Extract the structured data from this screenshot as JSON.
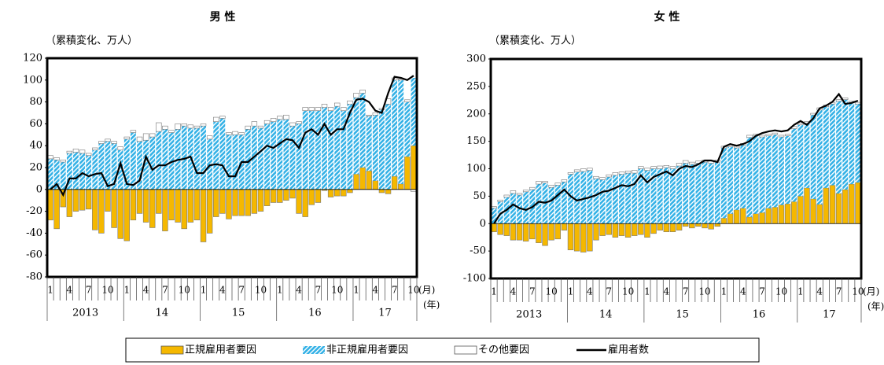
{
  "chart_data": [
    {
      "type": "bar",
      "title": "男 性",
      "y_label": "（累積変化、万人）",
      "categories": [
        "1",
        null,
        null,
        "4",
        null,
        null,
        "7",
        null,
        null,
        "10",
        null,
        null,
        "1",
        null,
        null,
        "4",
        null,
        null,
        "7",
        null,
        null,
        "10",
        null,
        null,
        "1",
        null,
        null,
        "4",
        null,
        null,
        "7",
        null,
        null,
        "10",
        null,
        null,
        "1",
        null,
        null,
        "4",
        null,
        null,
        "7",
        null,
        null,
        "10",
        null,
        null,
        "1",
        null,
        null,
        "4",
        null,
        null,
        "7",
        null,
        null,
        "10"
      ],
      "year_labels": [
        "2013",
        "14",
        "15",
        "16",
        "17"
      ],
      "x_units": [
        "(月)",
        "(年)"
      ],
      "ylim": [
        -80,
        120
      ],
      "yticks": [
        -80,
        -60,
        -40,
        -20,
        0,
        20,
        40,
        60,
        80,
        100,
        120
      ],
      "stacked": true,
      "legend": "bottom",
      "series": [
        {
          "name": "正規雇用者要因",
          "type": "bar",
          "color": "#f5b800",
          "values": [
            -28,
            -36,
            -16,
            -25,
            -20,
            -19,
            -18,
            -37,
            -40,
            -20,
            -35,
            -45,
            -47,
            -28,
            -22,
            -30,
            -35,
            -22,
            -38,
            -28,
            -30,
            -36,
            -30,
            -28,
            -48,
            -40,
            -25,
            -22,
            -27,
            -24,
            -24,
            -24,
            -22,
            -20,
            -15,
            -12,
            -12,
            -10,
            -8,
            -22,
            -25,
            -14,
            -12,
            -1,
            -7,
            -6,
            -6,
            -3,
            14,
            20,
            17,
            8,
            -3,
            -4,
            12,
            5,
            30,
            40
          ]
        },
        {
          "name": "非正規雇用者要因",
          "type": "bar",
          "color": "#33b1e6",
          "hatch": true,
          "values": [
            28,
            27,
            25,
            33,
            34,
            33,
            31,
            36,
            42,
            44,
            42,
            36,
            46,
            52,
            44,
            45,
            48,
            53,
            55,
            52,
            55,
            58,
            56,
            56,
            58,
            46,
            62,
            65,
            50,
            50,
            50,
            55,
            58,
            56,
            60,
            62,
            64,
            64,
            58,
            60,
            72,
            72,
            72,
            75,
            72,
            76,
            72,
            78,
            70,
            68,
            50,
            60,
            73,
            78,
            88,
            95,
            50,
            62
          ]
        },
        {
          "name": "その他要因",
          "type": "bar",
          "color": "#ffffff",
          "values": [
            3,
            2,
            2,
            2,
            3,
            3,
            2,
            2,
            2,
            2,
            2,
            3,
            2,
            2,
            4,
            6,
            3,
            8,
            3,
            2,
            5,
            2,
            3,
            2,
            2,
            3,
            4,
            2,
            2,
            3,
            2,
            3,
            4,
            2,
            3,
            3,
            3,
            4,
            3,
            2,
            3,
            3,
            3,
            3,
            3,
            3,
            3,
            3,
            4,
            3,
            1,
            2,
            1,
            5,
            2,
            1,
            2,
            -2
          ]
        },
        {
          "name": "雇用者数",
          "type": "line",
          "color": "#000000",
          "values": [
            0,
            5,
            -5,
            10,
            10,
            15,
            12,
            14,
            15,
            3,
            5,
            24,
            5,
            4,
            8,
            30,
            18,
            22,
            22,
            25,
            27,
            28,
            30,
            15,
            15,
            22,
            23,
            22,
            12,
            12,
            25,
            25,
            30,
            35,
            40,
            38,
            42,
            46,
            45,
            38,
            52,
            55,
            50,
            60,
            50,
            55,
            55,
            70,
            82,
            83,
            80,
            72,
            70,
            88,
            103,
            102,
            100,
            104
          ]
        }
      ]
    },
    {
      "type": "bar",
      "title": "女 性",
      "y_label": "（累積変化、万人）",
      "categories": [
        "1",
        null,
        null,
        "4",
        null,
        null,
        "7",
        null,
        null,
        "10",
        null,
        null,
        "1",
        null,
        null,
        "4",
        null,
        null,
        "7",
        null,
        null,
        "10",
        null,
        null,
        "1",
        null,
        null,
        "4",
        null,
        null,
        "7",
        null,
        null,
        "10",
        null,
        null,
        "1",
        null,
        null,
        "4",
        null,
        null,
        "7",
        null,
        null,
        "10",
        null,
        null,
        "1",
        null,
        null,
        "4",
        null,
        null,
        "7",
        null,
        null,
        "10"
      ],
      "year_labels": [
        "2013",
        "14",
        "15",
        "16",
        "17"
      ],
      "x_units": [
        "(月)",
        "(年)"
      ],
      "ylim": [
        -100,
        300
      ],
      "yticks": [
        -100,
        -50,
        0,
        50,
        100,
        150,
        200,
        250,
        300
      ],
      "stacked": true,
      "series": [
        {
          "type": "bar",
          "color": "#f5b800",
          "values": [
            -15,
            -20,
            -22,
            -30,
            -30,
            -32,
            -28,
            -35,
            -40,
            -30,
            -28,
            -12,
            -48,
            -50,
            -52,
            -50,
            -30,
            -22,
            -20,
            -25,
            -22,
            -25,
            -22,
            -20,
            -25,
            -18,
            -12,
            -15,
            -15,
            -12,
            -5,
            -8,
            -5,
            -8,
            -10,
            -5,
            10,
            18,
            25,
            28,
            12,
            18,
            20,
            28,
            30,
            34,
            36,
            40,
            50,
            65,
            45,
            35,
            65,
            70,
            55,
            62,
            72,
            75
          ]
        },
        {
          "type": "bar",
          "color": "#33b1e6",
          "hatch": true,
          "values": [
            28,
            40,
            48,
            55,
            52,
            58,
            62,
            72,
            74,
            66,
            70,
            76,
            90,
            94,
            95,
            97,
            82,
            80,
            85,
            88,
            90,
            92,
            92,
            100,
            97,
            100,
            100,
            102,
            100,
            105,
            110,
            108,
            110,
            112,
            110,
            112,
            128,
            122,
            113,
            115,
            145,
            142,
            138,
            132,
            132,
            124,
            124,
            133,
            130,
            118,
            153,
            172,
            148,
            148,
            168,
            164,
            148,
            143
          ]
        },
        {
          "type": "bar",
          "color": "#ffffff",
          "values": [
            3,
            3,
            4,
            5,
            3,
            3,
            4,
            5,
            3,
            4,
            4,
            4,
            3,
            4,
            5,
            4,
            4,
            4,
            4,
            5,
            4,
            4,
            5,
            4,
            4,
            4,
            5,
            4,
            4,
            5,
            5,
            4,
            4,
            4,
            5,
            4,
            3,
            3,
            3,
            3,
            4,
            3,
            3,
            3,
            3,
            3,
            3,
            4,
            3,
            3,
            3,
            4,
            3,
            3,
            3,
            3,
            3,
            3
          ]
        },
        {
          "type": "line",
          "color": "#000000",
          "values": [
            0,
            18,
            25,
            35,
            28,
            25,
            30,
            40,
            38,
            42,
            52,
            62,
            50,
            42,
            45,
            48,
            52,
            58,
            60,
            65,
            70,
            68,
            72,
            88,
            75,
            85,
            90,
            95,
            88,
            100,
            105,
            103,
            108,
            115,
            115,
            112,
            140,
            145,
            142,
            145,
            150,
            160,
            165,
            168,
            170,
            168,
            170,
            180,
            187,
            180,
            192,
            210,
            215,
            222,
            236,
            218,
            220,
            224
          ]
        }
      ]
    }
  ]
}
